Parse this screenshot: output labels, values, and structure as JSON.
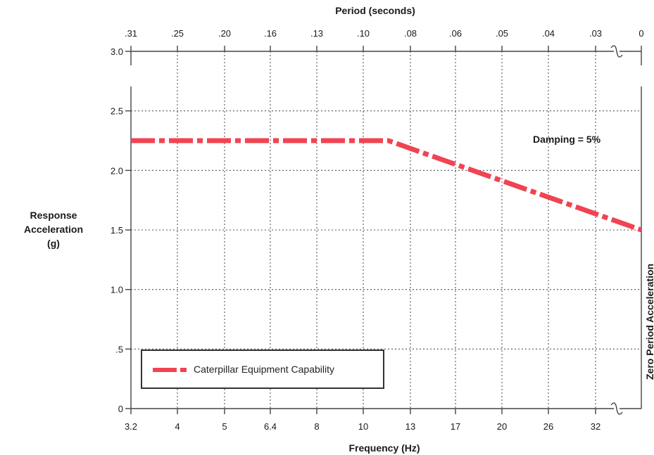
{
  "chart_data": {
    "type": "line",
    "title": "",
    "top_axis_label": "Period (seconds)",
    "top_tick_labels": [
      ".31",
      ".25",
      ".20",
      ".16",
      ".13",
      ".10",
      ".08",
      ".06",
      ".05",
      ".04",
      ".03",
      "0"
    ],
    "xlabel": "Frequency (Hz)",
    "bottom_tick_labels": [
      "3.2",
      "4",
      "5",
      "6.4",
      "8",
      "10",
      "13",
      "17",
      "20",
      "26",
      "32"
    ],
    "ylabel_lines": [
      "Response",
      "Acceleration",
      "(g)"
    ],
    "y_tick_labels": [
      "0",
      ".5",
      "1.0",
      "1.5",
      "2.0",
      "2.5",
      "3.0"
    ],
    "ylim": [
      0,
      3.0
    ],
    "right_axis_label": "Zero Period Acceleration",
    "annotation": "Damping = 5%",
    "grid": true,
    "grid_style": "dotted",
    "legend_position": "bottom-left",
    "series": [
      {
        "name": "Caterpillar Equipment Capability",
        "color": "#f04452",
        "line_style": "dash-dot",
        "points": [
          {
            "x": "3.2",
            "y": 2.25
          },
          {
            "x": "11.5",
            "y": 2.25
          },
          {
            "x": "Zero Period Acceleration",
            "y": 1.5
          }
        ]
      }
    ]
  }
}
